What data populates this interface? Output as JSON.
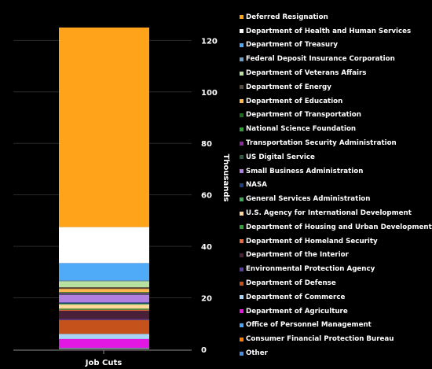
{
  "chart_data": {
    "type": "bar",
    "stacked": true,
    "categories": [
      "Job Cuts"
    ],
    "ylabel": "Thousands",
    "ylim": [
      0,
      125
    ],
    "yticks": [
      0,
      20,
      40,
      60,
      80,
      100,
      120
    ],
    "grid": true,
    "y_axis_side": "right",
    "legend_placement": "right",
    "legend_order": [
      "Deferred Resignation",
      "Department of Health and Human Services",
      "Department of Treasury",
      "Federal Deposit Insurance Corporation",
      "Department of Veterans Affairs",
      "Department of Energy",
      "Department of Education",
      "Department of Transportation",
      "National Science Foundation",
      "Transportation Security Administration",
      "US Digital Service",
      "Small Business Administration",
      "NASA",
      "General Services Administration",
      "U.S. Agency for International Development",
      "Department of Housing and Urban Development",
      "Department of Homeland Security",
      "Department of the Interior",
      "Environmental Protection Agency",
      "Department of Defense",
      "Department of Commerce",
      "Department of Agriculture",
      "Office of Personnel Management",
      "Consumer Financial Protection Bureau",
      "Other"
    ],
    "series": [
      {
        "name": "Other",
        "color": "#4a90e2",
        "values": [
          0.2
        ]
      },
      {
        "name": "Consumer Financial Protection Bureau",
        "color": "#ff7f00",
        "values": [
          0.2
        ]
      },
      {
        "name": "Office of Personnel Management",
        "color": "#4fa3f7",
        "values": [
          0.2
        ]
      },
      {
        "name": "Department of Agriculture",
        "color": "#e317e3",
        "values": [
          3.4
        ]
      },
      {
        "name": "Department of Commerce",
        "color": "#a8d4f7",
        "values": [
          2.0
        ]
      },
      {
        "name": "Department of Defense",
        "color": "#c4521a",
        "values": [
          5.4
        ]
      },
      {
        "name": "Environmental Protection Agency",
        "color": "#5b3fa0",
        "values": [
          0.4
        ]
      },
      {
        "name": "Department of the Interior",
        "color": "#4a1f38",
        "values": [
          3.2
        ]
      },
      {
        "name": "Department of Homeland Security",
        "color": "#e8693e",
        "values": [
          0.4
        ]
      },
      {
        "name": "Department of Housing and Urban Development",
        "color": "#2fa038",
        "values": [
          0.4
        ]
      },
      {
        "name": "U.S. Agency for International Development",
        "color": "#ffd799",
        "values": [
          1.6
        ]
      },
      {
        "name": "General Services Administration",
        "color": "#3fa85a",
        "values": [
          0.4
        ]
      },
      {
        "name": "NASA",
        "color": "#1e3f78",
        "values": [
          0.4
        ]
      },
      {
        "name": "Small Business Administration",
        "color": "#b07fe0",
        "values": [
          3.0
        ]
      },
      {
        "name": "US Digital Service",
        "color": "#2a5a3f",
        "values": [
          0.2
        ]
      },
      {
        "name": "Transportation Security Administration",
        "color": "#8a2a9a",
        "values": [
          0.4
        ]
      },
      {
        "name": "National Science Foundation",
        "color": "#2fa03a",
        "values": [
          0.2
        ]
      },
      {
        "name": "Department of Transportation",
        "color": "#1e6a1e",
        "values": [
          0.2
        ]
      },
      {
        "name": "Department of Education",
        "color": "#ffb84d",
        "values": [
          1.3
        ]
      },
      {
        "name": "Department of Energy",
        "color": "#5a4a3a",
        "values": [
          0.6
        ]
      },
      {
        "name": "Department of Veterans Affairs",
        "color": "#b8e0a0",
        "values": [
          2.4
        ]
      },
      {
        "name": "Federal Deposit Insurance Corporation",
        "color": "#6fa0c8",
        "values": [
          0.3
        ]
      },
      {
        "name": "Department of Treasury",
        "color": "#4faaf7",
        "values": [
          6.7
        ]
      },
      {
        "name": "Department of Health and Human Services",
        "color": "#ffffff",
        "values": [
          14.0
        ]
      },
      {
        "name": "Deferred Resignation",
        "color": "#ffa31a",
        "values": [
          77.5
        ]
      }
    ]
  }
}
